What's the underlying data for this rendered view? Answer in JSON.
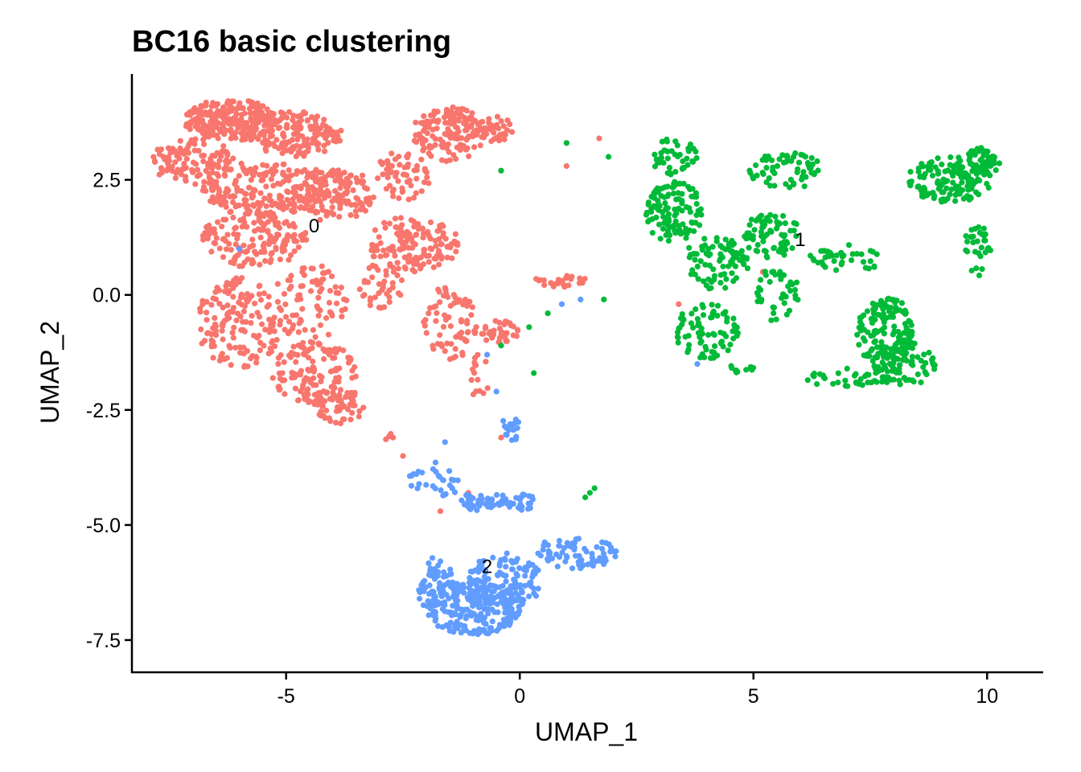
{
  "chart_data": {
    "type": "scatter",
    "title": "BC16 basic clustering",
    "xlabel": "UMAP_1",
    "ylabel": "UMAP_2",
    "xlim": [
      -8.3,
      11.2
    ],
    "ylim": [
      -8.2,
      4.8
    ],
    "x_ticks": [
      {
        "value": -5,
        "label": "-5"
      },
      {
        "value": 0,
        "label": "0"
      },
      {
        "value": 5,
        "label": "5"
      },
      {
        "value": 10,
        "label": "10"
      }
    ],
    "y_ticks": [
      {
        "value": 2.5,
        "label": "2.5"
      },
      {
        "value": 0,
        "label": "0.0"
      },
      {
        "value": -2.5,
        "label": "-2.5"
      },
      {
        "value": -5,
        "label": "-5.0"
      },
      {
        "value": -7.5,
        "label": "-7.5"
      }
    ],
    "grid": false,
    "legend": "none",
    "clusters": [
      {
        "id": "0",
        "label": "0",
        "label_pos": [
          -4.4,
          1.5
        ],
        "color": "#F8766D",
        "regions": [
          {
            "cx": -6.2,
            "cy": 3.8,
            "rx": 1.0,
            "ry": 0.45,
            "n": 220
          },
          {
            "cx": -7.0,
            "cy": 2.9,
            "rx": 0.9,
            "ry": 0.5,
            "n": 110
          },
          {
            "cx": -4.8,
            "cy": 3.5,
            "rx": 1.0,
            "ry": 0.5,
            "n": 160
          },
          {
            "cx": -5.5,
            "cy": 2.3,
            "rx": 1.3,
            "ry": 0.6,
            "n": 200
          },
          {
            "cx": -4.0,
            "cy": 2.2,
            "rx": 0.9,
            "ry": 0.6,
            "n": 140
          },
          {
            "cx": -5.7,
            "cy": 1.2,
            "rx": 1.2,
            "ry": 0.6,
            "n": 150
          },
          {
            "cx": -6.0,
            "cy": -0.6,
            "rx": 0.9,
            "ry": 1.0,
            "n": 150
          },
          {
            "cx": -4.5,
            "cy": -0.2,
            "rx": 0.8,
            "ry": 0.9,
            "n": 80
          },
          {
            "cx": -4.4,
            "cy": -1.7,
            "rx": 0.9,
            "ry": 0.7,
            "n": 120
          },
          {
            "cx": -3.9,
            "cy": -2.4,
            "rx": 0.6,
            "ry": 0.4,
            "n": 60
          },
          {
            "cx": -1.5,
            "cy": 3.5,
            "rx": 0.8,
            "ry": 0.6,
            "n": 140
          },
          {
            "cx": -0.6,
            "cy": 3.6,
            "rx": 0.5,
            "ry": 0.3,
            "n": 40
          },
          {
            "cx": -2.5,
            "cy": 2.6,
            "rx": 0.6,
            "ry": 0.6,
            "n": 60
          },
          {
            "cx": -2.3,
            "cy": 1.1,
            "rx": 1.0,
            "ry": 0.6,
            "n": 140
          },
          {
            "cx": -1.5,
            "cy": -0.6,
            "rx": 0.6,
            "ry": 0.8,
            "n": 70
          },
          {
            "cx": -3.0,
            "cy": 0.2,
            "rx": 0.5,
            "ry": 0.5,
            "n": 40
          },
          {
            "cx": -0.5,
            "cy": -0.8,
            "rx": 0.5,
            "ry": 0.25,
            "n": 40
          },
          {
            "cx": -0.9,
            "cy": -1.8,
            "rx": 0.3,
            "ry": 0.5,
            "n": 15
          },
          {
            "cx": 0.9,
            "cy": 0.3,
            "rx": 0.6,
            "ry": 0.15,
            "n": 25
          },
          {
            "cx": -2.8,
            "cy": -3.1,
            "rx": 0.3,
            "ry": 0.15,
            "n": 4
          }
        ],
        "extra_points": [
          [
            -2.5,
            -3.5
          ],
          [
            -1.1,
            -4.3
          ],
          [
            -1.7,
            -4.7
          ],
          [
            -0.4,
            -3.1
          ],
          [
            1.0,
            3.3
          ],
          [
            1.7,
            3.4
          ],
          [
            5.2,
            0.5
          ],
          [
            3.4,
            -0.2
          ],
          [
            1.0,
            2.8
          ]
        ]
      },
      {
        "id": "1",
        "label": "1",
        "label_pos": [
          6.0,
          1.2
        ],
        "color": "#00BA38",
        "regions": [
          {
            "cx": 3.3,
            "cy": 3.0,
            "rx": 0.5,
            "ry": 0.4,
            "n": 40
          },
          {
            "cx": 3.3,
            "cy": 1.8,
            "rx": 0.6,
            "ry": 0.7,
            "n": 110
          },
          {
            "cx": 4.2,
            "cy": 0.7,
            "rx": 0.7,
            "ry": 0.6,
            "n": 80
          },
          {
            "cx": 4.0,
            "cy": -0.8,
            "rx": 0.7,
            "ry": 0.6,
            "n": 80
          },
          {
            "cx": 5.7,
            "cy": 2.7,
            "rx": 0.8,
            "ry": 0.4,
            "n": 60
          },
          {
            "cx": 5.4,
            "cy": 1.3,
            "rx": 0.6,
            "ry": 0.5,
            "n": 70
          },
          {
            "cx": 5.5,
            "cy": 0.0,
            "rx": 0.5,
            "ry": 0.6,
            "n": 40
          },
          {
            "cx": 7.0,
            "cy": 0.8,
            "rx": 0.8,
            "ry": 0.3,
            "n": 40
          },
          {
            "cx": 7.8,
            "cy": -0.8,
            "rx": 0.6,
            "ry": 0.8,
            "n": 130
          },
          {
            "cx": 8.2,
            "cy": -1.5,
            "rx": 0.7,
            "ry": 0.5,
            "n": 80
          },
          {
            "cx": 7.0,
            "cy": -1.8,
            "rx": 0.9,
            "ry": 0.2,
            "n": 35
          },
          {
            "cx": 9.2,
            "cy": 2.5,
            "rx": 0.9,
            "ry": 0.5,
            "n": 140
          },
          {
            "cx": 9.9,
            "cy": 2.9,
            "rx": 0.4,
            "ry": 0.3,
            "n": 50
          },
          {
            "cx": 9.8,
            "cy": 1.0,
            "rx": 0.3,
            "ry": 0.6,
            "n": 30
          },
          {
            "cx": 4.7,
            "cy": -1.6,
            "rx": 0.3,
            "ry": 0.1,
            "n": 10
          }
        ],
        "extra_points": [
          [
            1.0,
            3.3
          ],
          [
            1.9,
            3.0
          ],
          [
            -0.4,
            2.7
          ],
          [
            0.6,
            -0.4
          ],
          [
            0.2,
            -0.7
          ],
          [
            -0.4,
            -1.1
          ],
          [
            0.3,
            -1.7
          ],
          [
            1.8,
            -0.1
          ],
          [
            1.6,
            -4.2
          ],
          [
            1.4,
            -4.4
          ],
          [
            1.5,
            -4.3
          ]
        ]
      },
      {
        "id": "2",
        "label": "2",
        "label_pos": [
          -0.7,
          -5.9
        ],
        "color": "#619CFF",
        "regions": [
          {
            "cx": -1.0,
            "cy": -6.8,
            "rx": 1.0,
            "ry": 0.6,
            "n": 220
          },
          {
            "cx": -0.3,
            "cy": -6.2,
            "rx": 0.8,
            "ry": 0.6,
            "n": 120
          },
          {
            "cx": -1.8,
            "cy": -6.3,
            "rx": 0.4,
            "ry": 0.6,
            "n": 60
          },
          {
            "cx": 1.2,
            "cy": -5.6,
            "rx": 0.9,
            "ry": 0.35,
            "n": 70
          },
          {
            "cx": -0.2,
            "cy": -4.5,
            "rx": 0.6,
            "ry": 0.2,
            "n": 40
          },
          {
            "cx": -1.0,
            "cy": -4.5,
            "rx": 0.3,
            "ry": 0.2,
            "n": 30
          },
          {
            "cx": -1.8,
            "cy": -4.0,
            "rx": 0.6,
            "ry": 0.4,
            "n": 30
          },
          {
            "cx": -0.2,
            "cy": -2.9,
            "rx": 0.2,
            "ry": 0.3,
            "n": 20
          }
        ],
        "extra_points": [
          [
            -6.0,
            1.0
          ],
          [
            0.9,
            -0.2
          ],
          [
            1.3,
            -0.1
          ],
          [
            -0.7,
            -1.3
          ],
          [
            -0.5,
            -2.1
          ],
          [
            3.8,
            -1.5
          ],
          [
            -1.6,
            -3.2
          ]
        ]
      }
    ]
  }
}
